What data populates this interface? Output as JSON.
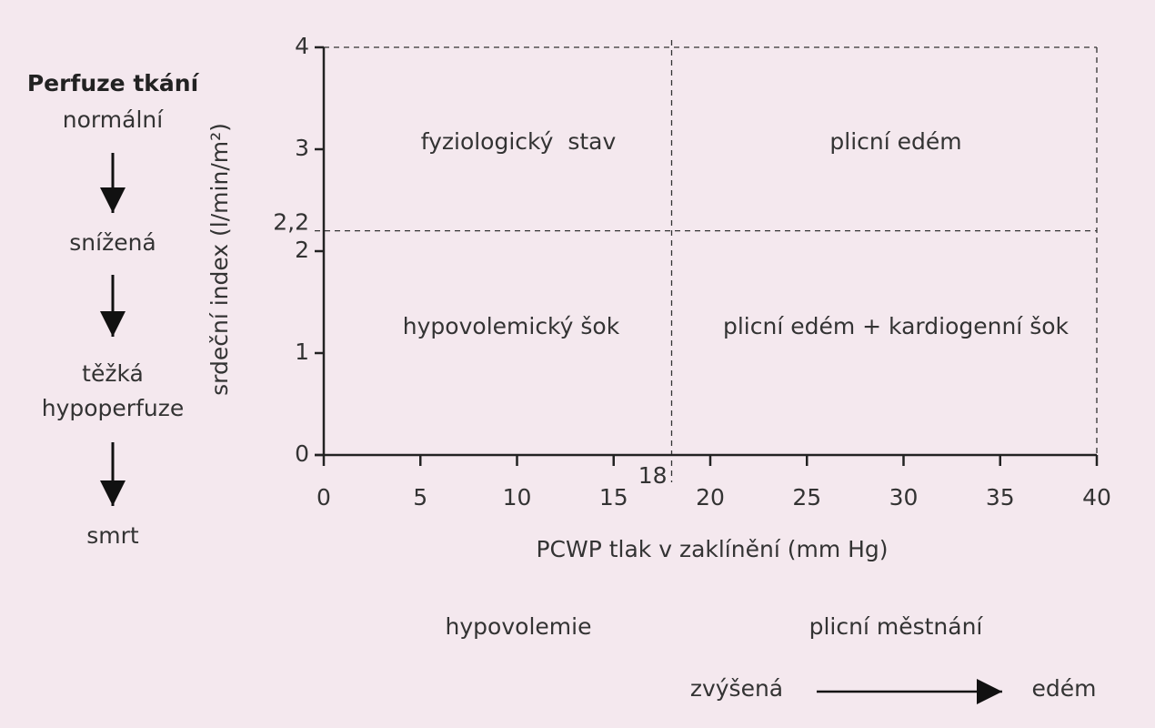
{
  "chart_data": {
    "type": "quadrant",
    "xlabel": "PCWP tlak v zaklínění (mm Hg)",
    "ylabel": "srdeční index (l/min/m²)",
    "xlim": [
      0,
      40
    ],
    "ylim": [
      0,
      4
    ],
    "xticks": [
      0,
      5,
      10,
      15,
      20,
      25,
      30,
      35,
      40
    ],
    "yticks": [
      0,
      1,
      2,
      3,
      4
    ],
    "thresholds": {
      "x": 18,
      "y": {
        "value": 2.2,
        "label": "2,2"
      }
    },
    "quadrants": [
      "fyziologický  stav",
      "plicní edém",
      "hypovolemický šok",
      "plicní edém + kardiogenní šok"
    ]
  },
  "perfusion": {
    "title": "Perfuze tkání",
    "stages": [
      "normální",
      "snížená",
      [
        "těžká",
        "hypoperfuze"
      ],
      "smrt"
    ]
  },
  "bottom": {
    "left": "hypovolemie",
    "right": "plicní městnání",
    "from": "zvýšená",
    "to": "edém"
  }
}
